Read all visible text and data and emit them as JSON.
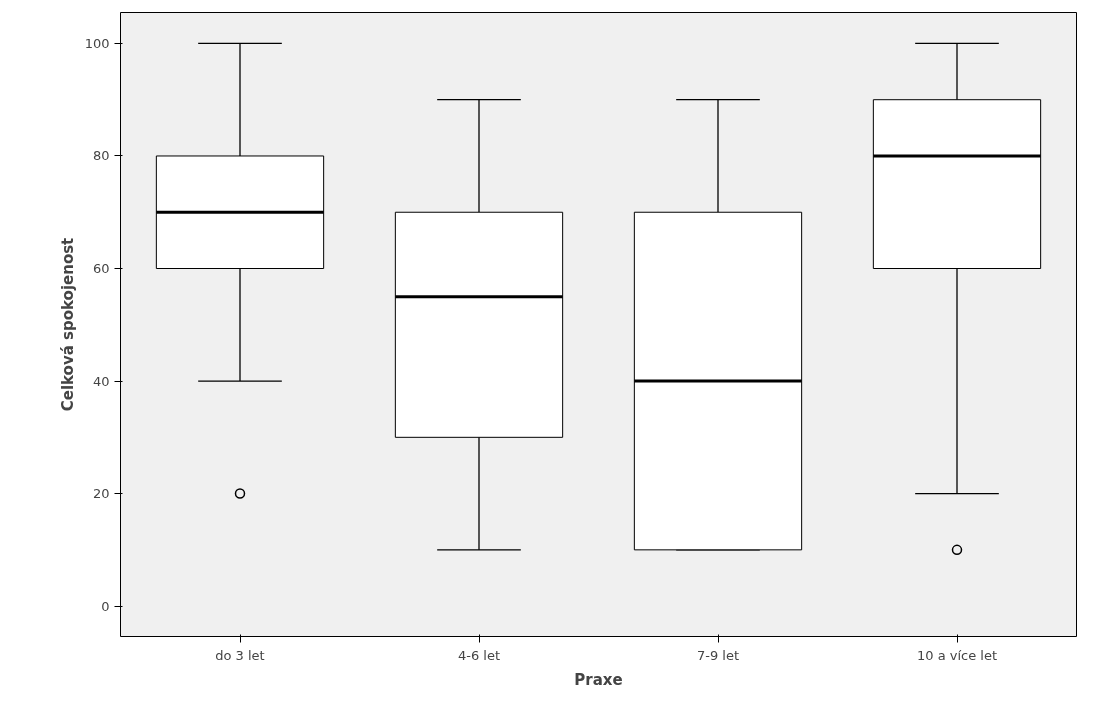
{
  "chart_data": {
    "type": "box",
    "xlabel": "Praxe",
    "ylabel": "Celková spokojenost",
    "categories": [
      "do 3 let",
      "4-6 let",
      "7-9 let",
      "10 a více let"
    ],
    "boxes": [
      {
        "low": 40,
        "q1": 60,
        "median": 70,
        "q3": 80,
        "high": 100,
        "outliers": [
          20
        ]
      },
      {
        "low": 10,
        "q1": 30,
        "median": 55,
        "q3": 70,
        "high": 90
      },
      {
        "low": 10,
        "q1": 10,
        "median": 40,
        "q3": 70,
        "high": 90
      },
      {
        "low": 20,
        "q1": 60,
        "median": 80,
        "q3": 90,
        "high": 100,
        "outliers": [
          10
        ]
      }
    ],
    "ylim": [
      -5.4,
      105.5
    ],
    "yticks": [
      0,
      20,
      40,
      60,
      80,
      100
    ],
    "grid": false
  }
}
